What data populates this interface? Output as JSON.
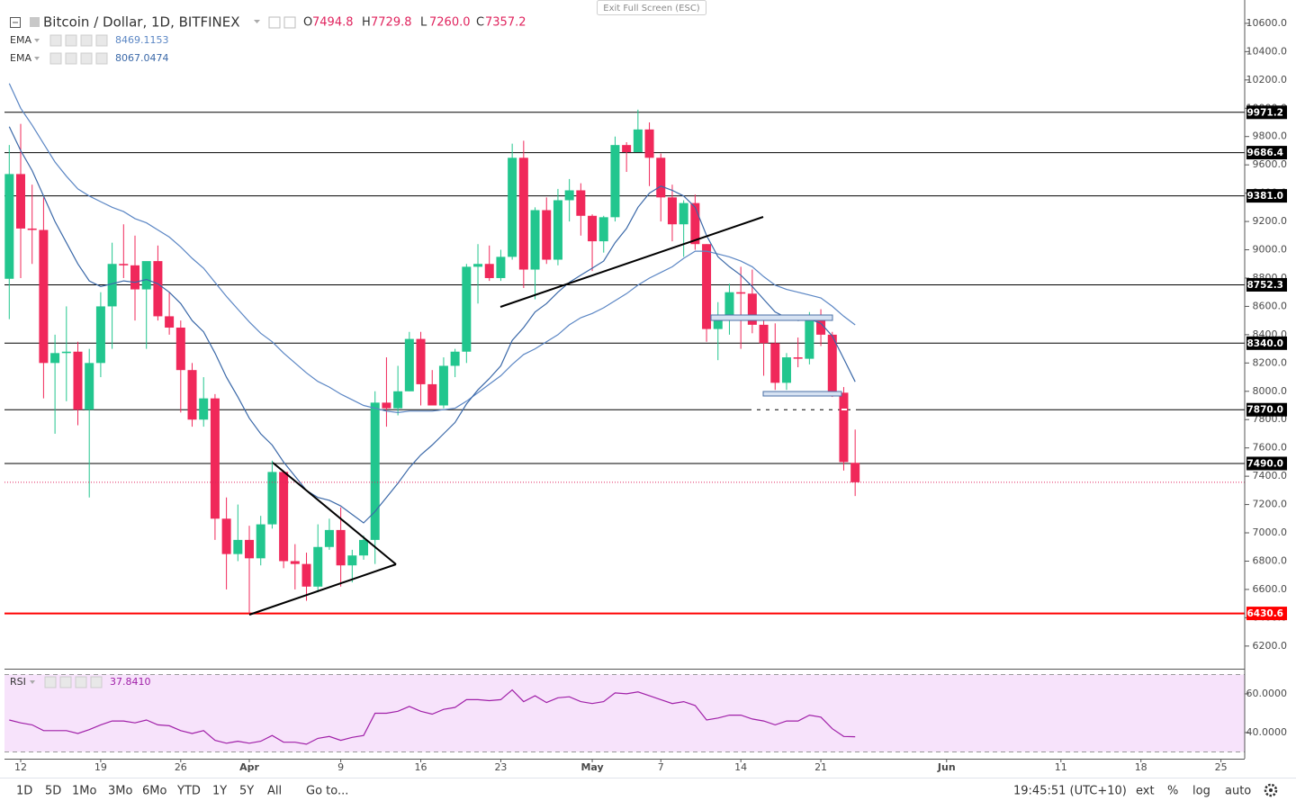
{
  "chart_data": [
    {
      "type": "candlestick",
      "title": "Bitcoin / Dollar, 1D, BITFINEX",
      "x": [
        "03-11",
        "03-12",
        "03-13",
        "03-14",
        "03-15",
        "03-16",
        "03-17",
        "03-18",
        "03-19",
        "03-20",
        "03-21",
        "03-22",
        "03-23",
        "03-24",
        "03-25",
        "03-26",
        "03-27",
        "03-28",
        "03-29",
        "03-30",
        "03-31",
        "04-01",
        "04-02",
        "04-03",
        "04-04",
        "04-05",
        "04-06",
        "04-07",
        "04-08",
        "04-09",
        "04-10",
        "04-11",
        "04-12",
        "04-13",
        "04-14",
        "04-15",
        "04-16",
        "04-17",
        "04-18",
        "04-19",
        "04-20",
        "04-21",
        "04-22",
        "04-23",
        "04-24",
        "04-25",
        "04-26",
        "04-27",
        "04-28",
        "04-29",
        "04-30",
        "05-01",
        "05-02",
        "05-03",
        "05-04",
        "05-05",
        "05-06",
        "05-07",
        "05-08",
        "05-09",
        "05-10",
        "05-11",
        "05-12",
        "05-13",
        "05-14",
        "05-15",
        "05-16",
        "05-17",
        "05-18",
        "05-19",
        "05-20",
        "05-21",
        "05-22",
        "05-23",
        "05-24"
      ],
      "open": [
        8795,
        9535,
        9150,
        9140,
        8200,
        8270,
        8280,
        7870,
        8200,
        8600,
        8900,
        8890,
        8720,
        8920,
        8530,
        8450,
        8150,
        7800,
        7950,
        7100,
        6850,
        6950,
        6820,
        7060,
        7430,
        6800,
        6780,
        6620,
        6900,
        7020,
        6770,
        6840,
        6950,
        7920,
        7880,
        8000,
        8370,
        8050,
        7900,
        8180,
        8280,
        8880,
        8900,
        8800,
        8950,
        9650,
        8860,
        9280,
        8930,
        9350,
        9420,
        9240,
        9060,
        9230,
        9740,
        9690,
        9850,
        9650,
        9370,
        9180,
        9330,
        9040,
        8440,
        8500,
        8700,
        8690,
        8470,
        8340,
        8060,
        8240,
        8230,
        8520,
        8400,
        7990,
        7494.8
      ],
      "high": [
        9740,
        9890,
        9460,
        9370,
        8400,
        8600,
        8350,
        8300,
        8700,
        9050,
        9180,
        9100,
        8900,
        9030,
        8700,
        8500,
        8200,
        8100,
        7980,
        7250,
        7200,
        7050,
        7120,
        7510,
        7440,
        6920,
        6860,
        7060,
        7100,
        7180,
        6880,
        6980,
        8000,
        8240,
        8180,
        8420,
        8420,
        8150,
        8240,
        8300,
        8900,
        9040,
        9030,
        9000,
        9750,
        9770,
        9300,
        9370,
        9430,
        9500,
        9470,
        9250,
        9240,
        9800,
        9760,
        9990,
        9900,
        9680,
        9460,
        9350,
        9390,
        9040,
        8630,
        8760,
        8880,
        8860,
        8500,
        8480,
        8270,
        8380,
        8560,
        8580,
        8420,
        8030,
        7729.8
      ],
      "low": [
        8510,
        8800,
        8900,
        7950,
        7700,
        7930,
        7760,
        7250,
        8100,
        8300,
        8800,
        8500,
        8300,
        8500,
        8400,
        7850,
        7750,
        7750,
        6950,
        6600,
        6800,
        6430,
        6770,
        7030,
        6750,
        6600,
        6520,
        6580,
        6880,
        6620,
        6650,
        6810,
        6780,
        7750,
        7830,
        8000,
        7900,
        7900,
        7880,
        8100,
        8200,
        8620,
        8780,
        8780,
        8930,
        8730,
        8650,
        8900,
        8890,
        9200,
        9100,
        8850,
        8980,
        9200,
        9550,
        9690,
        9450,
        9200,
        9060,
        8950,
        9000,
        8350,
        8220,
        8400,
        8300,
        8410,
        8110,
        8010,
        8010,
        8170,
        8190,
        8320,
        7960,
        7440,
        7260
      ],
      "close": [
        9535,
        9150,
        9140,
        8200,
        8270,
        8280,
        7870,
        8200,
        8600,
        8900,
        8890,
        8720,
        8920,
        8530,
        8450,
        8150,
        7800,
        7950,
        7100,
        6850,
        6950,
        6820,
        7060,
        7430,
        6800,
        6780,
        6620,
        6900,
        7020,
        6770,
        6840,
        6950,
        7920,
        7880,
        8000,
        8370,
        8050,
        7900,
        8180,
        8280,
        8880,
        8900,
        8800,
        8950,
        9650,
        8860,
        9280,
        8930,
        9350,
        9420,
        9240,
        9060,
        9230,
        9740,
        9690,
        9850,
        9650,
        9370,
        9180,
        9330,
        9040,
        8440,
        8500,
        8700,
        8690,
        8470,
        8340,
        8060,
        8240,
        8230,
        8520,
        8400,
        7990,
        7500,
        7357.2
      ],
      "up_color": "#22c68e",
      "down_color": "#f0285a",
      "series": [
        {
          "name": "EMA",
          "color": "#5b86c4",
          "values": [
            10175,
            10000,
            9880,
            9750,
            9620,
            9520,
            9430,
            9380,
            9340,
            9300,
            9270,
            9220,
            9190,
            9140,
            9090,
            9020,
            8940,
            8870,
            8770,
            8670,
            8580,
            8490,
            8410,
            8350,
            8270,
            8200,
            8130,
            8070,
            8030,
            7980,
            7940,
            7900,
            7880,
            7860,
            7850,
            7860,
            7860,
            7860,
            7870,
            7880,
            7930,
            7990,
            8050,
            8110,
            8190,
            8260,
            8300,
            8350,
            8400,
            8470,
            8520,
            8550,
            8590,
            8640,
            8690,
            8750,
            8800,
            8840,
            8880,
            8940,
            8990,
            8990,
            8970,
            8950,
            8920,
            8880,
            8810,
            8750,
            8720,
            8700,
            8680,
            8660,
            8600,
            8530,
            8469.1153
          ]
        },
        {
          "name": "EMA",
          "color": "#3a68a8",
          "values": [
            9870,
            9700,
            9560,
            9380,
            9200,
            9050,
            8900,
            8780,
            8740,
            8760,
            8780,
            8770,
            8790,
            8760,
            8700,
            8620,
            8500,
            8420,
            8270,
            8100,
            7960,
            7810,
            7700,
            7620,
            7500,
            7400,
            7300,
            7250,
            7230,
            7190,
            7130,
            7070,
            7150,
            7250,
            7350,
            7460,
            7550,
            7620,
            7700,
            7780,
            7910,
            8010,
            8090,
            8180,
            8360,
            8450,
            8560,
            8620,
            8700,
            8770,
            8820,
            8870,
            8920,
            9050,
            9150,
            9300,
            9400,
            9450,
            9420,
            9380,
            9300,
            9100,
            8950,
            8880,
            8820,
            8740,
            8650,
            8560,
            8520,
            8500,
            8510,
            8480,
            8390,
            8230,
            8067.0474
          ]
        }
      ],
      "hlines": [
        {
          "value": 9971.2,
          "label": "9971.2",
          "color": "#000000"
        },
        {
          "value": 9686.4,
          "label": "9686.4",
          "color": "#000000"
        },
        {
          "value": 9381,
          "label": "9381.0",
          "color": "#000000"
        },
        {
          "value": 8752.3,
          "label": "8752.3",
          "color": "#000000"
        },
        {
          "value": 8340,
          "label": "8340.0",
          "color": "#000000"
        },
        {
          "value": 7870,
          "label": "7870.0",
          "color": "#000000"
        },
        {
          "value": 7490,
          "label": "7490.0",
          "color": "#000000"
        },
        {
          "value": 6430.6,
          "label": "6430.6",
          "color": "#ff0000"
        }
      ],
      "last_price_line_color": "#e0245e",
      "ylim": [
        6040,
        10733
      ],
      "yticks": [
        {
          "value": 10600,
          "label": "10600.0"
        },
        {
          "value": 10400,
          "label": "10400.0"
        },
        {
          "value": 10200,
          "label": "10200.0"
        },
        {
          "value": 10000,
          "label": "10000.0"
        },
        {
          "value": 9800,
          "label": "9800.0"
        },
        {
          "value": 9600,
          "label": "9600.0"
        },
        {
          "value": 9400,
          "label": "9400.0"
        },
        {
          "value": 9200,
          "label": "9200.0"
        },
        {
          "value": 9000,
          "label": "9000.0"
        },
        {
          "value": 8800,
          "label": "8800.0"
        },
        {
          "value": 8600,
          "label": "8600.0"
        },
        {
          "value": 8400,
          "label": "8400.0"
        },
        {
          "value": 8200,
          "label": "8200.0"
        },
        {
          "value": 8000,
          "label": "8000.0"
        },
        {
          "value": 7800,
          "label": "7800.0"
        },
        {
          "value": 7600,
          "label": "7600.0"
        },
        {
          "value": 7400,
          "label": "7400.0"
        },
        {
          "value": 7200,
          "label": "7200.0"
        },
        {
          "value": 7000,
          "label": "7000.0"
        },
        {
          "value": 6800,
          "label": "6800.0"
        },
        {
          "value": 6600,
          "label": "6600.0"
        },
        {
          "value": 6400,
          "label": "6400.0"
        },
        {
          "value": 6200,
          "label": "6200.0"
        }
      ],
      "xlim": [
        "03-11",
        "06-27"
      ],
      "xticks": [
        {
          "value": "03-12",
          "label": "12"
        },
        {
          "value": "03-19",
          "label": "19"
        },
        {
          "value": "03-26",
          "label": "26"
        },
        {
          "value": "04-01",
          "label": "Apr"
        },
        {
          "value": "04-09",
          "label": "9"
        },
        {
          "value": "04-16",
          "label": "16"
        },
        {
          "value": "04-23",
          "label": "23"
        },
        {
          "value": "05-01",
          "label": "May"
        },
        {
          "value": "05-07",
          "label": "7"
        },
        {
          "value": "05-14",
          "label": "14"
        },
        {
          "value": "05-21",
          "label": "21"
        },
        {
          "value": "06-01",
          "label": "Jun"
        },
        {
          "value": "06-11",
          "label": "11"
        },
        {
          "value": "06-18",
          "label": "18"
        },
        {
          "value": "06-25",
          "label": "25"
        }
      ]
    },
    {
      "type": "line",
      "series": [
        {
          "name": "RSI",
          "color": "#a020a8",
          "values": [
            46.5,
            45,
            44,
            41,
            41,
            41,
            39.5,
            41.5,
            44,
            46,
            46,
            45,
            46.5,
            44,
            43.5,
            41,
            39.5,
            41,
            36,
            34.5,
            35.5,
            34.5,
            35.5,
            38.5,
            35,
            35,
            34,
            37,
            38,
            36,
            37.5,
            38.5,
            50,
            50,
            51,
            53.5,
            51,
            49.5,
            52,
            53,
            57,
            57,
            56.5,
            57,
            62,
            56,
            59,
            55.5,
            58,
            58.5,
            56,
            55,
            56,
            60.5,
            60,
            61,
            59,
            57,
            55,
            56,
            54,
            46.5,
            47.5,
            49,
            49,
            47,
            46,
            44,
            46,
            46,
            49,
            48,
            42,
            38,
            37.841
          ]
        }
      ],
      "bands": [
        30,
        70
      ],
      "band_color": "#f7e3fb",
      "ylim": [
        26.5,
        71.6
      ],
      "yticks": [
        {
          "value": 60,
          "label": "60.0000"
        },
        {
          "value": 40,
          "label": "40.0000"
        }
      ]
    }
  ],
  "ui": {
    "exit_button": "Exit Full Screen (ESC)",
    "ohlc": [
      {
        "key": "O",
        "value": "7494.8"
      },
      {
        "key": "H",
        "value": "7729.8"
      },
      {
        "key": "L",
        "value": "7260.0"
      },
      {
        "key": "C",
        "value": "7357.2"
      }
    ],
    "rsi_value": "37.8410",
    "ranges": [
      "1D",
      "5D",
      "1Mo",
      "3Mo",
      "6Mo",
      "YTD",
      "1Y",
      "5Y",
      "All"
    ],
    "goto": "Go to...",
    "clock": "19:45:51 (UTC+10)",
    "scale_buttons": [
      "ext",
      "%",
      "log",
      "auto"
    ]
  }
}
